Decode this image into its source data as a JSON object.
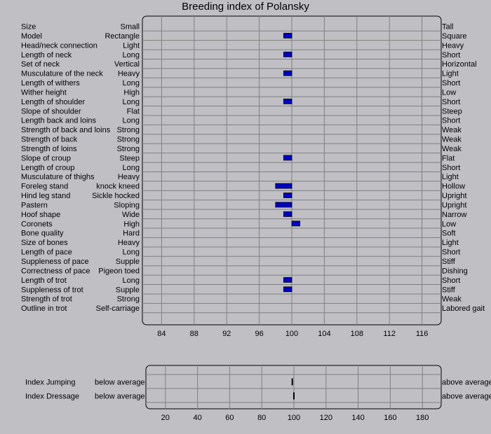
{
  "chart_data": [
    {
      "type": "bar",
      "title": "Breeding index of Polansky",
      "baseline": 100,
      "xlim": [
        80,
        120
      ],
      "ticks": [
        84,
        88,
        92,
        96,
        100,
        104,
        108,
        112,
        116
      ],
      "bar_color": "#0000c8",
      "grid": true,
      "traits": [
        {
          "name": "Size",
          "low": "Small",
          "high": "Tall",
          "value": null
        },
        {
          "name": "Model",
          "low": "Rectangle",
          "high": "Square",
          "value": 99
        },
        {
          "name": "Head/neck connection",
          "low": "Light",
          "high": "Heavy",
          "value": null
        },
        {
          "name": "Length of neck",
          "low": "Long",
          "high": "Short",
          "value": 99
        },
        {
          "name": "Set of neck",
          "low": "Vertical",
          "high": "Horizontal",
          "value": null
        },
        {
          "name": "Musculature of the neck",
          "low": "Heavy",
          "high": "Light",
          "value": 99
        },
        {
          "name": "Length of withers",
          "low": "Long",
          "high": "Short",
          "value": null
        },
        {
          "name": "Wither height",
          "low": "High",
          "high": "Low",
          "value": null
        },
        {
          "name": "Length of shoulder",
          "low": "Long",
          "high": "Short",
          "value": 99
        },
        {
          "name": "Slope of shoulder",
          "low": "Flat",
          "high": "Steep",
          "value": null
        },
        {
          "name": "Length back and loins",
          "low": "Long",
          "high": "Short",
          "value": null
        },
        {
          "name": "Strength of back and loins",
          "low": "Strong",
          "high": "Weak",
          "value": null
        },
        {
          "name": "Strength of back",
          "low": "Strong",
          "high": "Weak",
          "value": null
        },
        {
          "name": "Strength of loins",
          "low": "Strong",
          "high": "Weak",
          "value": null
        },
        {
          "name": "Slope of croup",
          "low": "Steep",
          "high": "Flat",
          "value": 99
        },
        {
          "name": "Length of croup",
          "low": "Long",
          "high": "Short",
          "value": null
        },
        {
          "name": "Musculature of thighs",
          "low": "Heavy",
          "high": "Light",
          "value": null
        },
        {
          "name": "Foreleg stand",
          "low": "knock kneed",
          "high": "Hollow",
          "value": 98
        },
        {
          "name": "Hind leg stand",
          "low": "Sickle hocked",
          "high": "Upright",
          "value": 99
        },
        {
          "name": "Pastern",
          "low": "Sloping",
          "high": "Upright",
          "value": 98
        },
        {
          "name": "Hoof shape",
          "low": "Wide",
          "high": "Narrow",
          "value": 99
        },
        {
          "name": "Coronets",
          "low": "High",
          "high": "Low",
          "value": 101
        },
        {
          "name": "Bone quality",
          "low": "Hard",
          "high": "Soft",
          "value": null
        },
        {
          "name": "Size of bones",
          "low": "Heavy",
          "high": "Light",
          "value": null
        },
        {
          "name": "Length of pace",
          "low": "Long",
          "high": "Short",
          "value": null
        },
        {
          "name": "Suppleness of pace",
          "low": "Supple",
          "high": "Stiff",
          "value": null
        },
        {
          "name": "Correctness of pace",
          "low": "Pigeon toed",
          "high": "Dishing",
          "value": null
        },
        {
          "name": "Length of trot",
          "low": "Long",
          "high": "Short",
          "value": 99
        },
        {
          "name": "Suppleness of trot",
          "low": "Supple",
          "high": "Stiff",
          "value": 99
        },
        {
          "name": "Strength of trot",
          "low": "Strong",
          "high": "Weak",
          "value": null
        },
        {
          "name": "Outline in trot",
          "low": "Self-carriage",
          "high": "Labored gait",
          "value": null
        }
      ]
    },
    {
      "type": "bar",
      "xlim": [
        5,
        195
      ],
      "ticks": [
        20,
        40,
        60,
        80,
        100,
        120,
        140,
        160,
        180
      ],
      "grid": true,
      "rows": [
        {
          "name": "Index Jumping",
          "low": "below average",
          "high": "above average",
          "value": 99
        },
        {
          "name": "Index Dressage",
          "low": "below average",
          "high": "above average",
          "value": 100
        }
      ]
    }
  ]
}
